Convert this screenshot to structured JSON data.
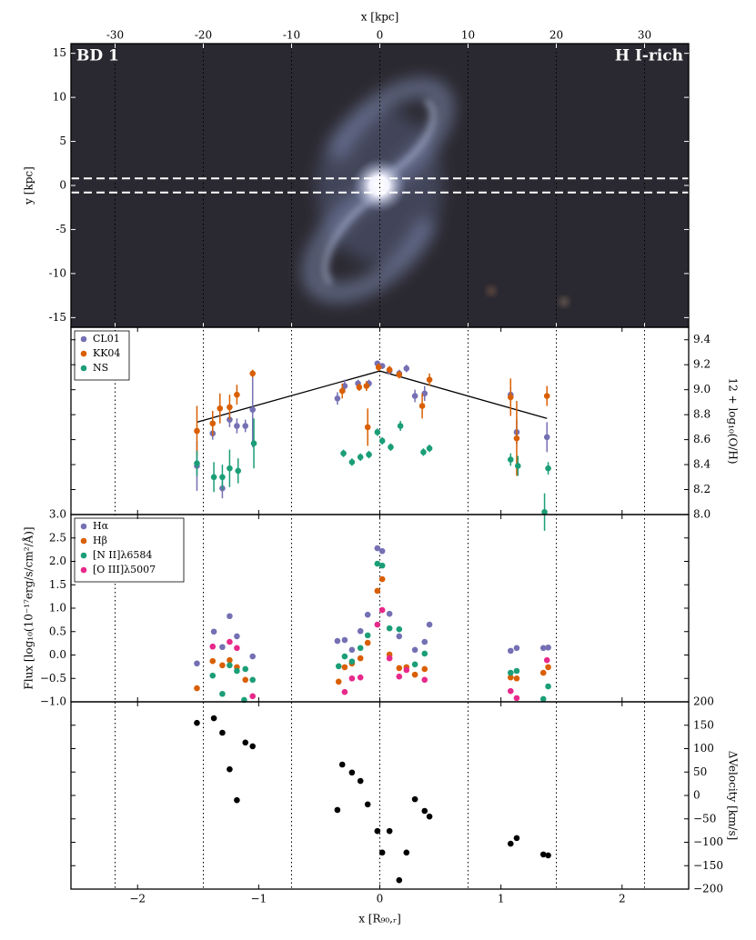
{
  "chart_data": [
    {
      "type": "image",
      "annotations": [
        "BD 1",
        "H I-rich"
      ],
      "xlabel": "x [kpc]",
      "ylabel": "y [kpc]",
      "xlim": [
        -35,
        35
      ],
      "ylim": [
        -16.1,
        16.1
      ],
      "xticks": [
        -30,
        -20,
        -10,
        0,
        10,
        20,
        30
      ],
      "yticks": [
        -15,
        -10,
        -5,
        0,
        5,
        10,
        15
      ],
      "xaxis": "top",
      "yaxis": "left",
      "grid": true,
      "slit_y": [
        -0.8,
        0.8
      ]
    },
    {
      "type": "scatter",
      "ylabel": "12 + log₁₀(O/H)",
      "xlim": [
        -2.55,
        2.55
      ],
      "ylim": [
        8.0,
        9.5
      ],
      "xticks": [
        -2,
        -1,
        0,
        1,
        2
      ],
      "yticks": [
        {
          "value": 8,
          "label": "8.0"
        },
        8.2,
        8.4,
        8.6,
        8.8,
        {
          "value": 9,
          "label": "9.0"
        },
        9.2,
        9.4
      ],
      "yaxis": "right",
      "series": [
        {
          "name": "CL01",
          "color": "#7570b3",
          "x": [
            -1.51,
            -1.38,
            -1.3,
            -1.24,
            -1.18,
            -1.11,
            -1.05,
            -0.35,
            -0.29,
            -0.18,
            -0.09,
            -0.02,
            0.02,
            0.08,
            0.16,
            0.22,
            0.29,
            0.37,
            1.08,
            1.13,
            1.38
          ],
          "values": [
            8.39,
            8.65,
            8.21,
            8.76,
            8.71,
            8.71,
            8.84,
            8.93,
            9.03,
            9.05,
            9.05,
            9.21,
            9.19,
            9.15,
            9.13,
            9.17,
            8.95,
            8.97,
            8.96,
            8.66,
            8.62
          ],
          "errors": [
            0.2,
            0.05,
            0.08,
            0.06,
            0.06,
            0.05,
            0.3,
            0.05,
            0.05,
            0.03,
            0.03,
            0.02,
            0.02,
            0.03,
            0.03,
            0.03,
            0.05,
            0.06,
            0.06,
            0.1,
            0.12
          ]
        },
        {
          "name": "KK04",
          "color": "#d95f02",
          "x": [
            -1.51,
            -1.38,
            -1.32,
            -1.24,
            -1.18,
            -1.05,
            -0.31,
            -0.17,
            -0.11,
            -0.1,
            -0.01,
            0.08,
            0.16,
            0.35,
            0.41,
            1.08,
            1.13,
            1.38
          ],
          "values": [
            8.67,
            8.73,
            8.85,
            8.86,
            8.96,
            9.13,
            8.99,
            9.02,
            9.03,
            8.7,
            9.18,
            9.16,
            9.12,
            8.87,
            9.08,
            8.94,
            8.61,
            8.95
          ],
          "errors": [
            0.2,
            0.1,
            0.12,
            0.1,
            0.08,
            0.03,
            0.06,
            0.03,
            0.04,
            0.15,
            0.03,
            0.03,
            0.03,
            0.1,
            0.05,
            0.15,
            0.3,
            0.08
          ]
        },
        {
          "name": "NS",
          "color": "#1b9e77",
          "x": [
            -1.51,
            -1.37,
            -1.3,
            -1.24,
            -1.17,
            -1.04,
            -0.3,
            -0.23,
            -0.16,
            -0.09,
            -0.02,
            0.02,
            0.09,
            0.17,
            0.36,
            0.41,
            1.08,
            1.14,
            1.36,
            1.39
          ],
          "values": [
            8.41,
            8.3,
            8.3,
            8.37,
            8.35,
            8.57,
            8.49,
            8.42,
            8.46,
            8.48,
            8.66,
            8.59,
            8.54,
            8.71,
            8.5,
            8.53,
            8.44,
            8.39,
            8.02,
            8.37
          ],
          "errors": [
            0.1,
            0.12,
            0.1,
            0.15,
            0.1,
            0.2,
            0.03,
            0.03,
            0.03,
            0.03,
            0.03,
            0.03,
            0.03,
            0.04,
            0.03,
            0.03,
            0.05,
            0.08,
            0.15,
            0.05
          ]
        }
      ],
      "fit": {
        "color": "#000000",
        "x": [
          -1.51,
          0,
          1.38
        ],
        "values": [
          8.74,
          9.15,
          8.77
        ]
      }
    },
    {
      "type": "scatter",
      "ylabel": "Flux [log₁₀(10⁻¹⁷erg/s/cm²/Å)]",
      "xlim": [
        -2.55,
        2.55
      ],
      "ylim": [
        -1,
        3
      ],
      "xticks": [
        -2,
        -1,
        0,
        1,
        2
      ],
      "yticks": [
        {
          "value": -1,
          "label": "−1.0"
        },
        {
          "value": -0.5,
          "label": "−0.5"
        },
        {
          "value": 0,
          "label": "0.0"
        },
        0.5,
        {
          "value": 1,
          "label": "1.0"
        },
        1.5,
        {
          "value": 2,
          "label": "2.0"
        },
        2.5,
        {
          "value": 3,
          "label": "3.0"
        }
      ],
      "yaxis": "left",
      "series": [
        {
          "name": "Hα",
          "color": "#7570b3",
          "x": [
            -1.51,
            -1.37,
            -1.3,
            -1.24,
            -1.18,
            -1.05,
            -0.35,
            -0.29,
            -0.23,
            -0.16,
            -0.1,
            -0.02,
            0.02,
            0.08,
            0.16,
            0.29,
            0.37,
            0.41,
            1.08,
            1.13,
            1.35,
            1.39
          ],
          "values": [
            -0.18,
            0.5,
            0.17,
            0.83,
            0.4,
            -0.03,
            0.3,
            0.32,
            0.11,
            0.51,
            0.86,
            2.28,
            2.22,
            0.88,
            0.4,
            0.11,
            0.28,
            0.65,
            0.09,
            0.15,
            0.15,
            0.16
          ]
        },
        {
          "name": "Hβ",
          "color": "#d95f02",
          "x": [
            -1.51,
            -1.38,
            -1.3,
            -1.24,
            -1.18,
            -1.11,
            -0.34,
            -0.29,
            -0.23,
            -0.16,
            -0.1,
            -0.02,
            0.02,
            0.08,
            0.16,
            0.22,
            0.29,
            0.37,
            1.08,
            1.13,
            1.35,
            1.39
          ],
          "values": [
            -0.71,
            -0.13,
            -0.22,
            -0.11,
            -0.26,
            -0.53,
            -0.57,
            -0.26,
            -0.18,
            -0.07,
            0.26,
            1.37,
            1.62,
            0.01,
            -0.28,
            -0.26,
            -0.42,
            -0.3,
            -0.48,
            -0.5,
            -0.38,
            -0.26
          ]
        },
        {
          "name": "[N II]λ6584",
          "color": "#1b9e77",
          "x": [
            -1.38,
            -1.3,
            -1.24,
            -1.18,
            -1.11,
            -1.05,
            -1.12,
            -0.34,
            -0.29,
            -0.23,
            -0.16,
            -0.1,
            -0.02,
            0.02,
            0.08,
            0.16,
            0.29,
            0.37,
            1.08,
            1.13,
            1.35,
            1.39
          ],
          "values": [
            -0.44,
            -0.83,
            -0.22,
            -0.34,
            -0.3,
            -0.53,
            -0.96,
            -0.24,
            -0.03,
            -0.14,
            0.15,
            0.42,
            1.95,
            1.91,
            0.57,
            0.55,
            -0.2,
            0.03,
            -0.38,
            -0.34,
            -0.94,
            -0.67
          ]
        },
        {
          "name": "[O III]λ5007",
          "color": "#e7298a",
          "x": [
            -1.38,
            -1.24,
            -1.18,
            -1.05,
            -0.29,
            -0.23,
            -0.16,
            -0.02,
            0.02,
            0.08,
            0.16,
            0.22,
            0.37,
            1.08,
            1.13,
            1.38
          ],
          "values": [
            0.18,
            0.28,
            0.15,
            -0.88,
            -0.79,
            -0.5,
            -0.48,
            0.65,
            0.96,
            -0.07,
            -0.46,
            -0.32,
            -0.53,
            -0.77,
            -0.92,
            -0.11
          ]
        }
      ]
    },
    {
      "type": "scatter",
      "ylabel": "ΔVelocity [km/s]",
      "xlabel": "x [R₉₀,ᵣ]",
      "xaxis": "bottom",
      "xlim": [
        -2.55,
        2.55
      ],
      "ylim": [
        -200,
        200
      ],
      "xticks": [
        {
          "value": -2,
          "label": "−2"
        },
        {
          "value": -1,
          "label": "−1"
        },
        0,
        1,
        2
      ],
      "yticks": [
        {
          "value": -200,
          "label": "−200"
        },
        {
          "value": -150,
          "label": "−150"
        },
        {
          "value": -100,
          "label": "−100"
        },
        {
          "value": -50,
          "label": "−50"
        },
        0,
        50,
        100,
        150,
        200
      ],
      "yaxis": "right",
      "series": [
        {
          "color": "#000000",
          "x": [
            -1.51,
            -1.37,
            -1.3,
            -1.24,
            -1.18,
            -1.11,
            -1.05,
            -0.35,
            -0.31,
            -0.23,
            -0.16,
            -0.1,
            -0.02,
            0.02,
            0.08,
            0.16,
            0.22,
            0.29,
            0.37,
            0.41,
            1.08,
            1.13,
            1.35,
            1.39
          ],
          "values": [
            155,
            165,
            134,
            56,
            -10,
            113,
            105,
            -31,
            66,
            49,
            31,
            -19,
            -76,
            -122,
            -76,
            -181,
            -122,
            -8,
            -33,
            -45,
            -103,
            -91,
            -126,
            -128
          ]
        }
      ]
    }
  ]
}
